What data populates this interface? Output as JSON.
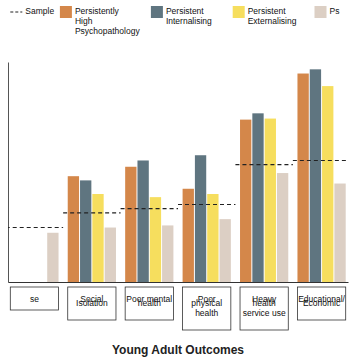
{
  "chart_data": {
    "type": "bar",
    "x_label": "Young Adult Outcomes",
    "categories": [
      "se",
      "Social Isolation",
      "Poor mental health",
      "Poor physical health",
      "Heavy health service use",
      "Educational/ Economic"
    ],
    "series": [
      {
        "name": "Sample",
        "type": "line",
        "line_style": "dashed",
        "color": "#222222",
        "values": [
          52,
          66,
          70,
          74,
          112,
          116
        ]
      },
      {
        "name": "Persistently High Psychopathology",
        "color": "#D4874A",
        "values": [
          null,
          101,
          110,
          89,
          155,
          199
        ]
      },
      {
        "name": "Persistent Internalising",
        "color": "#5F7580",
        "values": [
          null,
          97,
          116,
          121,
          161,
          203
        ]
      },
      {
        "name": "Persistent Externalising",
        "color": "#F6DE5E",
        "values": [
          null,
          84,
          81,
          84,
          156,
          187
        ]
      },
      {
        "name": "Ps",
        "color": "#DCCFC4",
        "values": [
          47,
          52,
          54,
          60,
          104,
          94
        ]
      }
    ],
    "ylim": [
      0,
      210
    ],
    "tick_labels": "x",
    "legend": "top"
  }
}
